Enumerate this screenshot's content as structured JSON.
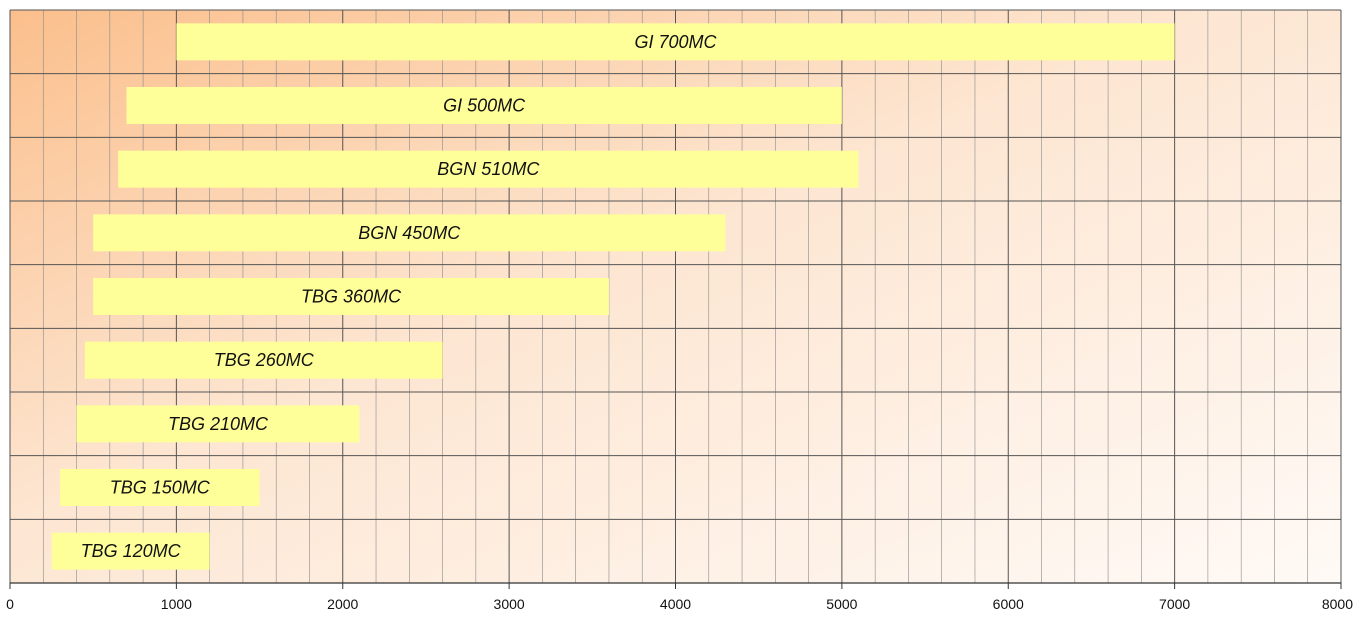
{
  "chart_data": {
    "type": "bar",
    "orientation": "horizontal-range",
    "title": "",
    "xlabel": "",
    "ylabel": "",
    "xlim": [
      0,
      8000
    ],
    "x_major_ticks": [
      0,
      1000,
      2000,
      3000,
      4000,
      5000,
      6000,
      7000,
      8000
    ],
    "x_minor_step": 200,
    "grid": true,
    "legend": "none",
    "bars": [
      {
        "label": "GI 700MC",
        "start": 1000,
        "end": 7000
      },
      {
        "label": "GI 500MC",
        "start": 700,
        "end": 5000
      },
      {
        "label": "BGN 510MC",
        "start": 650,
        "end": 5100
      },
      {
        "label": "BGN 450MC",
        "start": 500,
        "end": 4300
      },
      {
        "label": "TBG 360MC",
        "start": 500,
        "end": 3600
      },
      {
        "label": "TBG 260MC",
        "start": 450,
        "end": 2600
      },
      {
        "label": "TBG 210MC",
        "start": 400,
        "end": 2100
      },
      {
        "label": "TBG 150MC",
        "start": 300,
        "end": 1500
      },
      {
        "label": "TBG 120MC",
        "start": 250,
        "end": 1200
      }
    ],
    "colors": {
      "bar_fill": "#ffff99",
      "bg_dark": "#fbbf8c",
      "bg_light": "#fffaf6",
      "grid_major": "#555555",
      "grid_minor": "#8a8a8a",
      "axis": "#333333"
    }
  }
}
